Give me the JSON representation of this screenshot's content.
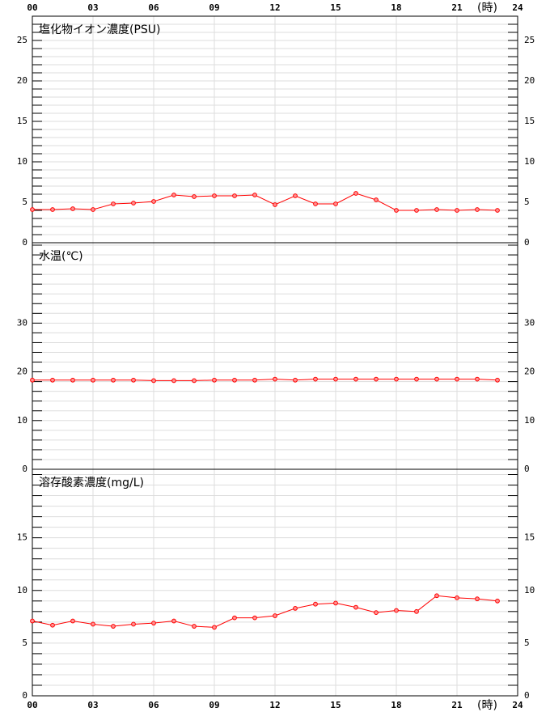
{
  "chart_data": [
    {
      "type": "line",
      "title": "塩化物イオン濃度(PSU)",
      "color": "#ff0000",
      "x_label": "(時)",
      "xaxis": "top",
      "x": [
        0,
        1,
        2,
        3,
        4,
        5,
        6,
        7,
        8,
        9,
        10,
        11,
        12,
        13,
        14,
        15,
        16,
        17,
        18,
        19,
        20,
        21,
        22,
        23
      ],
      "values": [
        4.1,
        4.1,
        4.2,
        4.1,
        4.8,
        4.9,
        5.1,
        5.9,
        5.7,
        5.8,
        5.8,
        5.9,
        4.7,
        5.8,
        4.8,
        4.8,
        6.1,
        5.3,
        4.0,
        4.0,
        4.1,
        4.0,
        4.1,
        4.0
      ],
      "xlim": [
        0,
        24
      ],
      "xticks": [
        {
          "value": 0,
          "label": "00"
        },
        {
          "value": 3,
          "label": "03"
        },
        {
          "value": 6,
          "label": "06"
        },
        {
          "value": 9,
          "label": "09"
        },
        12,
        15,
        18,
        21,
        24
      ],
      "ylim": [
        0,
        28
      ],
      "yticks": [
        0,
        5,
        10,
        15,
        20,
        25
      ],
      "minor_yticks": [
        1,
        2,
        3,
        4,
        6,
        7,
        8,
        9,
        11,
        12,
        13,
        14,
        16,
        17,
        18,
        19,
        21,
        22,
        23,
        24,
        26,
        27
      ]
    },
    {
      "type": "line",
      "title": "水温(℃)",
      "color": "#ff0000",
      "x": [
        0,
        1,
        2,
        3,
        4,
        5,
        6,
        7,
        8,
        9,
        10,
        11,
        12,
        13,
        14,
        15,
        16,
        17,
        18,
        19,
        20,
        21,
        22,
        23
      ],
      "values": [
        18.3,
        18.3,
        18.3,
        18.3,
        18.3,
        18.3,
        18.2,
        18.2,
        18.2,
        18.3,
        18.3,
        18.3,
        18.5,
        18.3,
        18.5,
        18.5,
        18.5,
        18.5,
        18.5,
        18.5,
        18.5,
        18.5,
        18.5,
        18.3
      ],
      "xlim": [
        0,
        24
      ],
      "ylim": [
        0,
        46.5
      ],
      "yticks": [
        0,
        10,
        20,
        30
      ],
      "minor_yticks": [
        2,
        4,
        6,
        8,
        12,
        14,
        16,
        18,
        22,
        24,
        26,
        28,
        32,
        34,
        36,
        38,
        40,
        42,
        44,
        46
      ]
    },
    {
      "type": "line",
      "title": "溶存酸素濃度(mg/L)",
      "color": "#ff0000",
      "x_label": "(時)",
      "xaxis": "bottom",
      "x": [
        0,
        1,
        2,
        3,
        4,
        5,
        6,
        7,
        8,
        9,
        10,
        11,
        12,
        13,
        14,
        15,
        16,
        17,
        18,
        19,
        20,
        21,
        22,
        23
      ],
      "values": [
        7.1,
        6.7,
        7.1,
        6.8,
        6.6,
        6.8,
        6.9,
        7.1,
        6.6,
        6.5,
        7.4,
        7.4,
        7.6,
        8.3,
        8.7,
        8.8,
        8.4,
        7.9,
        8.1,
        8.0,
        9.5,
        9.3,
        9.2,
        9.0
      ],
      "xlim": [
        0,
        24
      ],
      "xticks": [
        {
          "value": 0,
          "label": "00"
        },
        {
          "value": 3,
          "label": "03"
        },
        {
          "value": 6,
          "label": "06"
        },
        {
          "value": 9,
          "label": "09"
        },
        12,
        15,
        18,
        21,
        24
      ],
      "ylim": [
        0,
        21.5
      ],
      "yticks": [
        0,
        5,
        10,
        15
      ],
      "minor_yticks": [
        1,
        2,
        3,
        4,
        6,
        7,
        8,
        9,
        11,
        12,
        13,
        14,
        16,
        17,
        18,
        19,
        20,
        21
      ]
    }
  ]
}
